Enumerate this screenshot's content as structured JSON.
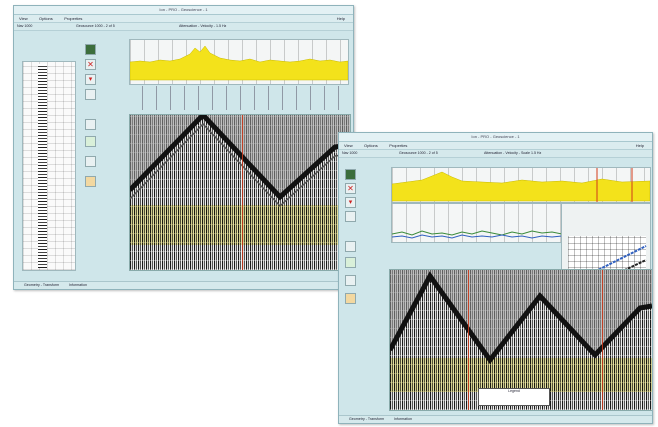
{
  "window_left": {
    "title": "Ion - PRO - Geoscience - 1",
    "menu": [
      "View",
      "Options",
      "Properties"
    ],
    "menu_right": "Help",
    "info_left": "Nav 1000",
    "info_mid": "Geosource 1000 - 2 of 5",
    "info_right": "Attenuation - Velocity - 1.5 Hz",
    "status_left": "Geometry - Transform",
    "status_mid": "Information",
    "tools": [
      "display-icon",
      "delete-icon",
      "pick-icon",
      "options-icon",
      "zoom-icon",
      "filter-icon",
      "gain-icon",
      "color-icon"
    ]
  },
  "window_right": {
    "title": "Ion - PRO - Geoscience - 1",
    "menu": [
      "View",
      "Options",
      "Properties"
    ],
    "menu_right": "Help",
    "info_left": "Nav 1000",
    "info_mid": "Geosource 1000 - 2 of 5",
    "info_right": "Attenuation - Velocity - Scale 1.5 Hz",
    "status_left": "Geometry - Transform",
    "status_mid": "Information",
    "legend_title": "Legend",
    "tools": [
      "display-icon",
      "delete-icon",
      "pick-icon",
      "options-icon",
      "zoom-icon",
      "filter-icon",
      "gain-icon",
      "color-icon"
    ]
  },
  "colors": {
    "window_bg": "#cfe6ea",
    "amplitude_fill": "#f3e21b",
    "pick_line": "#d23a1a",
    "seismic_dark": "#1a1a1a",
    "velocity_trace_green": "#3a8a3a",
    "velocity_trace_blue": "#2f5fbf"
  }
}
